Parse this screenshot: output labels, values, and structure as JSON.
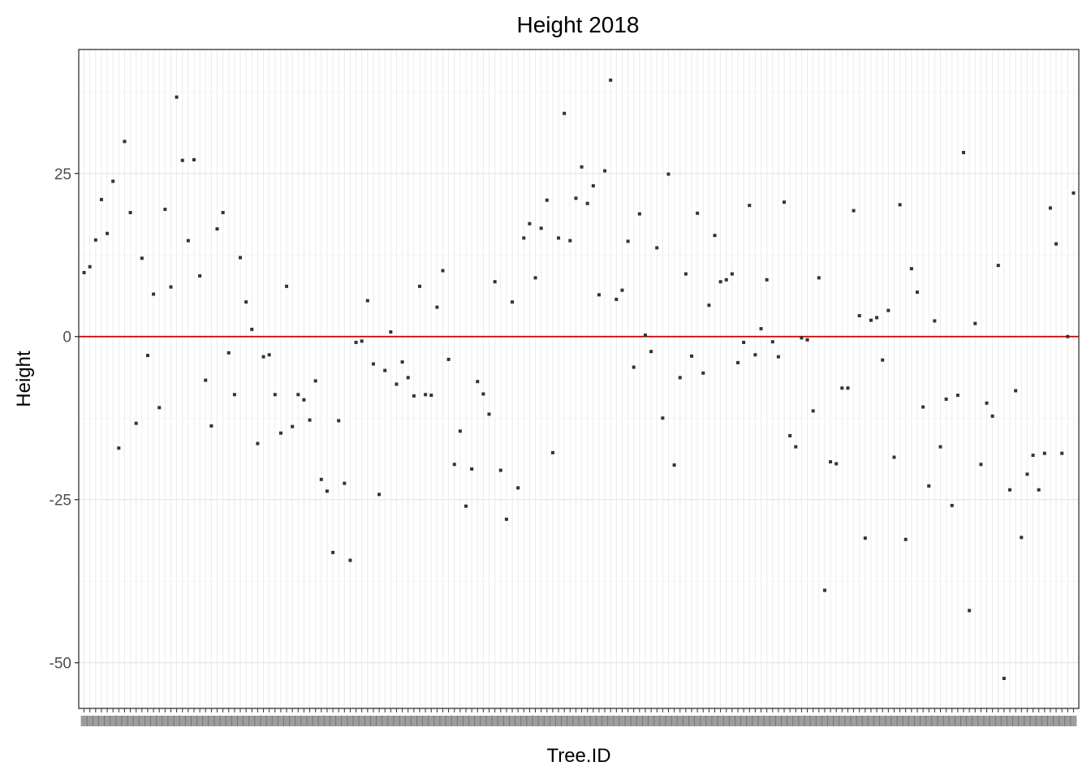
{
  "chart_data": {
    "type": "scatter",
    "title": "Height 2018",
    "xlabel": "Tree.ID",
    "ylabel": "Height",
    "y_ticks": [
      25,
      0,
      -25,
      -50
    ],
    "y_tick_labels": [
      "25",
      "0",
      "-25",
      "-50"
    ],
    "ylim": [
      -57,
      44
    ],
    "x_tick_labels_overlapping": true,
    "grid": true,
    "reference_line": {
      "y": 0,
      "color": "#cc0000"
    },
    "point_color": "#333333",
    "values": [
      9.8,
      10.7,
      14.8,
      21.0,
      15.8,
      23.8,
      -17.1,
      29.9,
      19.0,
      -13.3,
      12.0,
      -2.9,
      6.5,
      -10.9,
      19.5,
      7.6,
      36.7,
      27.0,
      14.7,
      27.1,
      9.3,
      -6.7,
      -13.7,
      16.5,
      19.0,
      -2.5,
      -8.9,
      12.1,
      5.3,
      1.1,
      -16.4,
      -3.1,
      -2.8,
      -8.9,
      -14.8,
      7.7,
      -13.8,
      -8.9,
      -9.7,
      -12.8,
      -6.8,
      -21.9,
      -23.7,
      -33.1,
      -12.9,
      -22.5,
      -34.3,
      -0.9,
      -0.7,
      5.5,
      -4.2,
      -24.2,
      -5.2,
      0.7,
      -7.3,
      -3.9,
      -6.3,
      -9.1,
      7.7,
      -8.9,
      -9.0,
      4.5,
      10.1,
      -3.5,
      -19.6,
      -14.5,
      -26.0,
      -20.3,
      -6.9,
      -8.8,
      -11.9,
      8.4,
      -20.5,
      -28.0,
      5.3,
      -23.2,
      15.1,
      17.3,
      9.0,
      16.6,
      20.9,
      -17.8,
      15.1,
      34.2,
      14.7,
      21.2,
      26.0,
      20.4,
      23.1,
      6.4,
      25.4,
      39.3,
      5.7,
      7.1,
      14.6,
      -4.7,
      18.8,
      0.2,
      -2.3,
      13.6,
      -12.5,
      24.9,
      -19.7,
      -6.3,
      9.6,
      -3.0,
      18.9,
      -5.6,
      4.8,
      15.5,
      8.4,
      8.7,
      9.6,
      -4.0,
      -0.9,
      20.1,
      -2.8,
      1.2,
      8.7,
      -0.8,
      -3.1,
      20.6,
      -15.2,
      -16.9,
      -0.2,
      -0.5,
      -11.4,
      9.0,
      -38.9,
      -19.2,
      -19.5,
      -7.9,
      -7.9,
      19.3,
      3.2,
      -30.9,
      2.5,
      2.9,
      -3.6,
      4.0,
      -18.5,
      20.2,
      -31.1,
      10.4,
      6.8,
      -10.8,
      -22.9,
      2.4,
      -16.9,
      -9.6,
      -25.9,
      -9.0,
      28.2,
      -42.0,
      2.0,
      -19.6,
      -10.2,
      -12.2,
      10.9,
      -52.4,
      -23.5,
      -8.3,
      -30.8,
      -21.1,
      -18.2,
      -23.5,
      -17.9,
      19.7,
      14.2,
      -17.9,
      0.0,
      22.0
    ]
  }
}
